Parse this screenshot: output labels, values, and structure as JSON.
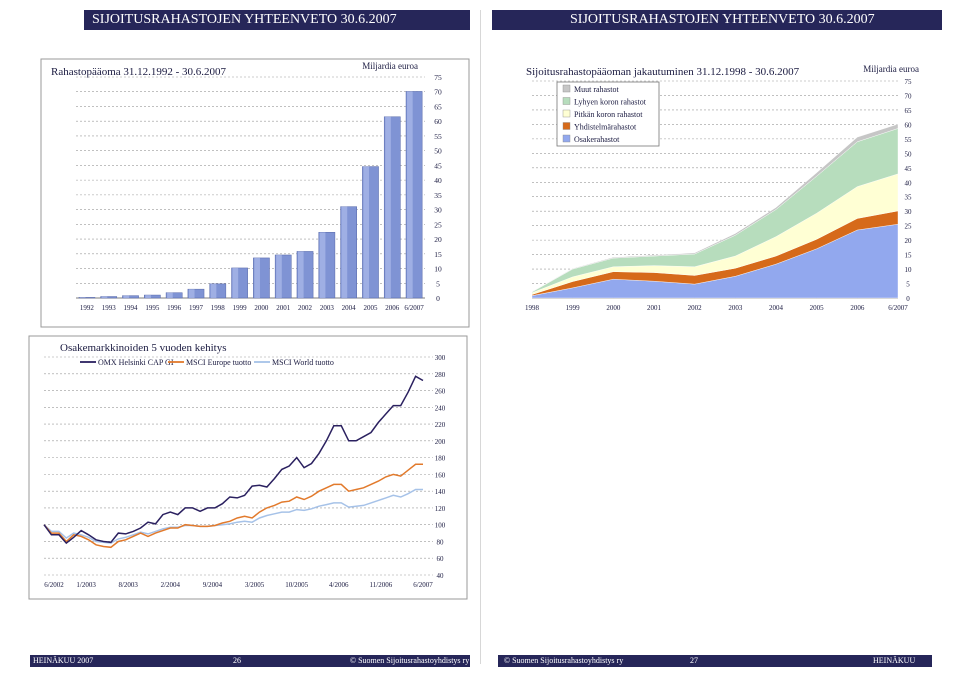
{
  "left_header": "SIJOITUSRAHASTOJEN YHTEENVETO 30.6.2007",
  "right_header": "SIJOITUSRAHASTOJEN YHTEENVETO 30.6.2007",
  "footer_left": {
    "month": "HEINÄKUU 2007",
    "page": "26",
    "org": "© Suomen Sijoitusrahastoyhdistys ry"
  },
  "footer_right": {
    "org": "© Suomen Sijoitusrahastoyhdistys ry",
    "page": "27",
    "month": "HEINÄKUU 2007"
  },
  "colors": {
    "header": "#262659",
    "bar": "#7f93d4",
    "line_omx": "#2b2160",
    "line_europe": "#e27a2c",
    "line_world": "#a6c2e8"
  },
  "chart_data": [
    {
      "type": "bar",
      "title": "Rahastopääoma 31.12.1992 - 30.6.2007",
      "unit": "Miljardia euroa",
      "categories": [
        "1992",
        "1993",
        "1994",
        "1995",
        "1996",
        "1997",
        "1998",
        "1999",
        "2000",
        "2001",
        "2002",
        "2003",
        "2004",
        "2005",
        "2006",
        "6/2007"
      ],
      "values": [
        0.2,
        0.5,
        0.8,
        1.0,
        1.8,
        3.0,
        4.8,
        10.2,
        13.6,
        14.6,
        15.8,
        22.3,
        31.0,
        44.6,
        61.5,
        70.1
      ],
      "ylim": [
        0,
        75
      ],
      "yticks": [
        0,
        5,
        10,
        15,
        20,
        25,
        30,
        35,
        40,
        45,
        50,
        55,
        60,
        65,
        70,
        75
      ],
      "grid": true
    },
    {
      "type": "area",
      "title": "Sijoitusrahastopääoman jakautuminen 31.12.1998 - 30.6.2007",
      "unit": "Miljardia euroa",
      "stacked": true,
      "categories": [
        "1998",
        "1999",
        "2000",
        "2001",
        "2002",
        "2003",
        "2004",
        "2005",
        "2006",
        "6/2007"
      ],
      "series": [
        {
          "name": "Osakerahastot",
          "color": "#92a8ee",
          "values": [
            0.8,
            3.5,
            6.5,
            5.8,
            4.8,
            7.5,
            11.7,
            17.0,
            23.5,
            25.5
          ]
        },
        {
          "name": "Yhdistelmärahastot",
          "color": "#d66a1a",
          "values": [
            0.4,
            2.2,
            2.6,
            3.0,
            3.0,
            2.8,
            2.8,
            3.3,
            4.0,
            4.6
          ]
        },
        {
          "name": "Pitkän koron rahastot",
          "color": "#ffffd4",
          "values": [
            0.6,
            1.6,
            1.7,
            2.4,
            3.0,
            4.2,
            6.7,
            9.0,
            11.0,
            12.8
          ]
        },
        {
          "name": "Lyhyen koron rahastot",
          "color": "#b7ddbd",
          "values": [
            0.3,
            2.7,
            3.0,
            3.3,
            4.4,
            7.2,
            9.4,
            12.8,
            15.5,
            15.7
          ]
        },
        {
          "name": "Muut rahastot",
          "color": "#c6c6c6",
          "values": [
            0.1,
            0.2,
            0.3,
            0.3,
            0.4,
            0.6,
            0.7,
            1.2,
            1.6,
            1.5
          ]
        }
      ],
      "legend": [
        "Muut rahastot",
        "Lyhyen koron rahastot",
        "Pitkän koron rahastot",
        "Yhdistelmärahastot",
        "Osakerahastot"
      ],
      "ylim": [
        0,
        75
      ],
      "yticks": [
        0,
        5,
        10,
        15,
        20,
        25,
        30,
        35,
        40,
        45,
        50,
        55,
        60,
        65,
        70,
        75
      ],
      "grid": true
    },
    {
      "type": "line",
      "title": "Osakemarkkinoiden 5 vuoden kehitys",
      "x_ticks": [
        "6/2002",
        "1/2003",
        "8/2003",
        "2/2004",
        "9/2004",
        "3/2005",
        "10/2005",
        "4/2006",
        "11/2006",
        "6/2007"
      ],
      "ylim": [
        40,
        300
      ],
      "yticks": [
        40,
        60,
        80,
        100,
        120,
        140,
        160,
        180,
        200,
        220,
        240,
        260,
        280,
        300
      ],
      "grid": true,
      "series": [
        {
          "name": "OMX Helsinki CAP GI",
          "color": "#2b2160",
          "values": [
            100,
            88,
            88,
            78,
            85,
            93,
            88,
            82,
            80,
            79,
            90,
            89,
            92,
            96,
            103,
            101,
            112,
            115,
            112,
            120,
            120,
            116,
            120,
            120,
            125,
            133,
            132,
            135,
            146,
            147,
            145,
            155,
            166,
            170,
            180,
            168,
            173,
            185,
            200,
            218,
            218,
            200,
            200,
            205,
            210,
            222,
            232,
            242,
            242,
            258,
            277,
            272
          ]
        },
        {
          "name": "MSCI Europe tuotto",
          "color": "#e27a2c",
          "values": [
            100,
            90,
            90,
            80,
            88,
            86,
            82,
            76,
            74,
            73,
            80,
            82,
            86,
            90,
            86,
            90,
            93,
            96,
            96,
            100,
            99,
            98,
            98,
            99,
            102,
            104,
            108,
            110,
            108,
            115,
            120,
            123,
            127,
            128,
            133,
            130,
            134,
            140,
            144,
            148,
            148,
            140,
            142,
            144,
            148,
            152,
            157,
            160,
            158,
            165,
            172,
            172
          ]
        },
        {
          "name": "MSCI World tuotto",
          "color": "#a6c2e8",
          "values": [
            100,
            92,
            92,
            84,
            90,
            88,
            85,
            80,
            79,
            78,
            83,
            85,
            88,
            91,
            89,
            92,
            95,
            97,
            97,
            99,
            99,
            98,
            98,
            99,
            100,
            101,
            103,
            104,
            103,
            108,
            111,
            113,
            115,
            115,
            118,
            117,
            119,
            122,
            124,
            126,
            126,
            121,
            122,
            123,
            126,
            129,
            132,
            135,
            133,
            137,
            142,
            142
          ]
        }
      ]
    }
  ]
}
